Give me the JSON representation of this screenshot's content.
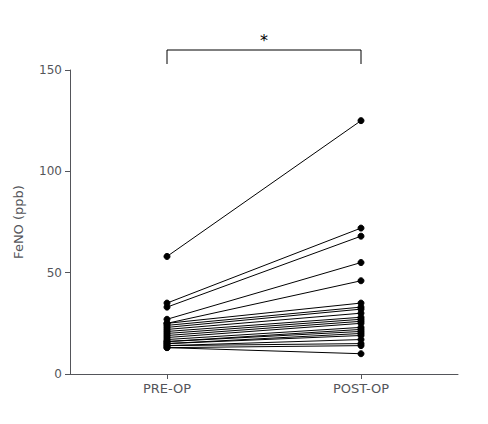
{
  "chart_data": {
    "type": "line",
    "categories": [
      "PRE-OP",
      "POST-OP"
    ],
    "ylabel": "FeNO (ppb)",
    "color": "black",
    "marker": "circle",
    "grid": false,
    "ylim": [
      0,
      150
    ],
    "yticks": [
      0,
      50,
      100,
      150
    ],
    "annotations": [
      "*"
    ],
    "series": [
      {
        "values": [
          58,
          125
        ]
      },
      {
        "values": [
          35,
          72
        ]
      },
      {
        "values": [
          33,
          68
        ]
      },
      {
        "values": [
          27,
          55
        ]
      },
      {
        "values": [
          25,
          46
        ]
      },
      {
        "values": [
          25,
          35
        ]
      },
      {
        "values": [
          24,
          33
        ]
      },
      {
        "values": [
          23,
          32
        ]
      },
      {
        "values": [
          22,
          30
        ]
      },
      {
        "values": [
          21,
          28
        ]
      },
      {
        "values": [
          20,
          27
        ]
      },
      {
        "values": [
          19,
          26
        ]
      },
      {
        "values": [
          18,
          25
        ]
      },
      {
        "values": [
          17,
          23
        ]
      },
      {
        "values": [
          16,
          22
        ]
      },
      {
        "values": [
          16,
          21
        ]
      },
      {
        "values": [
          15,
          20
        ]
      },
      {
        "values": [
          15,
          19
        ]
      },
      {
        "values": [
          14,
          17
        ]
      },
      {
        "values": [
          14,
          15
        ]
      },
      {
        "values": [
          13,
          14
        ]
      },
      {
        "values": [
          13,
          10
        ]
      }
    ]
  }
}
